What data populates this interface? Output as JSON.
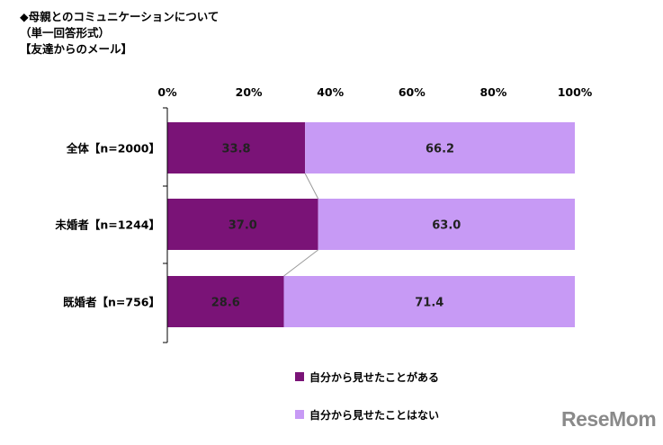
{
  "header": {
    "line1": "◆母親とのコミュニケーションについて",
    "line2": "（単一回答形式）",
    "line3": "【友達からのメール】"
  },
  "colors": {
    "series1": "#7a1377",
    "series2": "#c79af5"
  },
  "chart_data": {
    "type": "bar",
    "orientation": "horizontal",
    "stacked": "percent",
    "categories": [
      "全体【n=2000】",
      "未婚者【n=1244】",
      "既婚者【n=756】"
    ],
    "series": [
      {
        "name": "自分から見せたことがある",
        "values": [
          33.8,
          37.0,
          28.6
        ],
        "labels": [
          "33.8",
          "37.0",
          "28.6"
        ]
      },
      {
        "name": "自分から見せたことはない",
        "values": [
          66.2,
          63.0,
          71.4
        ],
        "labels": [
          "66.2",
          "63.0",
          "71.4"
        ]
      }
    ],
    "xlim": [
      0,
      100
    ],
    "xticks": [
      "0%",
      "20%",
      "40%",
      "60%",
      "80%",
      "100%"
    ],
    "series_lines": true,
    "legend_position": "bottom"
  },
  "legend": [
    {
      "label": "自分から見せたことがある"
    },
    {
      "label": "自分から見せたことはない"
    }
  ],
  "watermark": "ReseMom"
}
